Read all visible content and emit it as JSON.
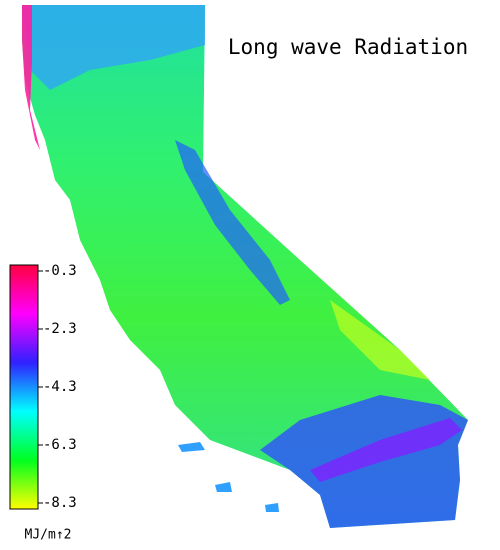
{
  "title": "Long wave Radiation",
  "colorbar": {
    "unit": "MJ/m↑2",
    "clim": [
      -0.3,
      -8.3
    ],
    "ticks": [
      -0.3,
      -2.3,
      -4.3,
      -6.3,
      -8.3
    ],
    "colormap": [
      "#ff0040",
      "#ff00ff",
      "#3020ff",
      "#00ffff",
      "#00ff20",
      "#ffff00"
    ]
  }
}
